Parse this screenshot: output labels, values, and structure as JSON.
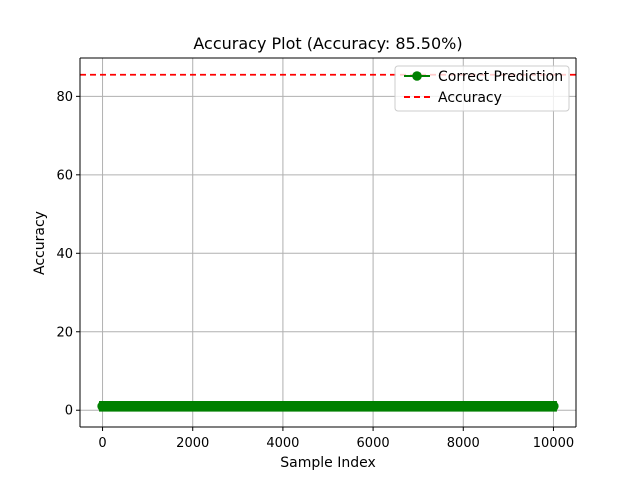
{
  "chart_data": {
    "type": "line",
    "title": "Accuracy Plot (Accuracy: 85.50%)",
    "xlabel": "Sample Index",
    "ylabel": "Accuracy",
    "xlim": [
      -500,
      10500
    ],
    "ylim": [
      -4.275,
      89.775
    ],
    "xticks": [
      0,
      2000,
      4000,
      6000,
      8000,
      10000
    ],
    "xtick_labels": [
      "0",
      "2000",
      "4000",
      "6000",
      "8000",
      "10000"
    ],
    "yticks": [
      0,
      20,
      40,
      60,
      80
    ],
    "ytick_labels": [
      "0",
      "20",
      "40",
      "60",
      "80"
    ],
    "grid": true,
    "legend_position": "top-right",
    "series": [
      {
        "name": "Correct Prediction",
        "kind": "line-markers",
        "color": "#008000",
        "x_start": 0,
        "x_end": 9999,
        "y": 1
      },
      {
        "name": "Accuracy",
        "kind": "horizontal-dashed-line",
        "color": "#ff0000",
        "y": 85.5
      }
    ]
  }
}
